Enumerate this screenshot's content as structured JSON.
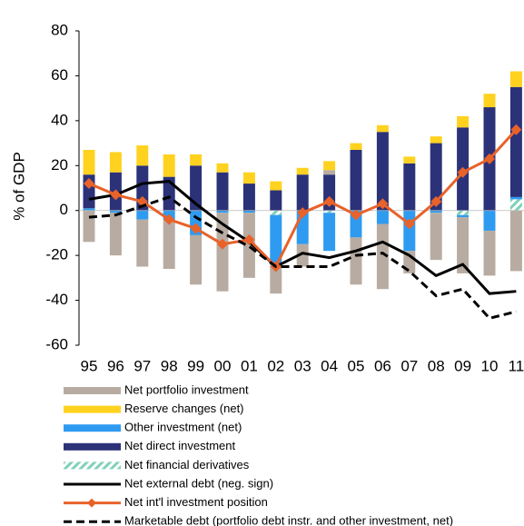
{
  "chart_data": {
    "type": "bar",
    "y_label": "% of GDP",
    "categories": [
      "95",
      "96",
      "97",
      "98",
      "99",
      "00",
      "01",
      "02",
      "03",
      "04",
      "05",
      "06",
      "07",
      "08",
      "09",
      "10",
      "11"
    ],
    "ylim": [
      -60,
      80
    ],
    "yticks": [
      -60,
      -40,
      -20,
      0,
      20,
      40,
      60,
      80
    ],
    "series": [
      {
        "name": "Net portfolio investment",
        "kind": "bar",
        "color": "#b8aca2",
        "values": [
          -14,
          -19,
          -21,
          -22,
          -22,
          -35,
          -29,
          -13,
          -10,
          2,
          -21,
          -29,
          -10,
          -21,
          -25,
          -20,
          -27
        ]
      },
      {
        "name": "Reserve changes (net)",
        "kind": "bar",
        "color": "#ffd21f",
        "values": [
          11,
          9,
          9,
          10,
          5,
          4,
          5,
          4,
          3,
          4,
          3,
          3,
          3,
          3,
          5,
          6,
          7
        ]
      },
      {
        "name": "Other investment (net)",
        "kind": "bar",
        "color": "#2f9bf0",
        "values": [
          1,
          -1,
          -4,
          -4,
          -11,
          -1,
          -1,
          -22,
          -15,
          -17,
          -12,
          -6,
          -18,
          -1,
          -1,
          -9,
          1
        ]
      },
      {
        "name": "Net direct investment",
        "kind": "bar",
        "color": "#2b3278",
        "values": [
          15,
          17,
          20,
          15,
          20,
          17,
          12,
          9,
          16,
          16,
          27,
          35,
          21,
          30,
          37,
          46,
          49
        ]
      },
      {
        "name": "Net financial derivatives",
        "kind": "bar",
        "color": "#7fd1b9",
        "pattern": "hatch",
        "values": [
          0,
          0,
          0,
          0,
          0,
          0,
          0,
          -2,
          0,
          -1,
          0,
          0,
          0,
          0,
          -2,
          0,
          5
        ]
      },
      {
        "name": "Net external debt (neg. sign)",
        "kind": "line",
        "color": "#000000",
        "values": [
          5,
          7,
          12,
          13,
          3,
          -6,
          -14,
          -25,
          -19,
          -21,
          -18,
          -14,
          -20,
          -29,
          -24,
          -37,
          -36
        ]
      },
      {
        "name": "Net int'l investment position",
        "kind": "line",
        "color": "#e8622a",
        "marker": "diamond",
        "values": [
          12,
          7,
          4,
          -4,
          -8,
          -15,
          -13,
          -25,
          -1,
          4,
          -2,
          3,
          -6,
          4,
          17,
          23,
          36
        ]
      },
      {
        "name": "Marketable debt (portfolio debt instr. and other investment, net)",
        "kind": "line",
        "color": "#000000",
        "dash": true,
        "values": [
          -3,
          -2,
          2,
          6,
          -3,
          -10,
          -16,
          -25,
          -25,
          -25,
          -20,
          -19,
          -27,
          -38,
          -35,
          -48,
          -45
        ]
      }
    ]
  }
}
